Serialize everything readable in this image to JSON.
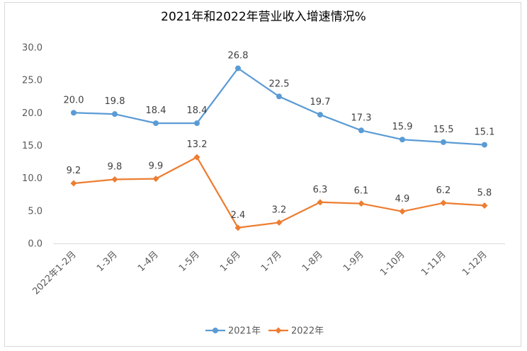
{
  "chart_data": {
    "type": "line",
    "title": "2021年和2022年营业收入增速情况%",
    "xlabel": "",
    "ylabel": "",
    "categories": [
      "2022年1-2月",
      "1-3月",
      "1-4月",
      "1-5月",
      "1-6月",
      "1-7月",
      "1-8月",
      "1-9月",
      "1-10月",
      "1-11月",
      "1-12月"
    ],
    "ylim": [
      0,
      30
    ],
    "yticks": [
      "0.0",
      "5.0",
      "10.0",
      "15.0",
      "20.0",
      "25.0",
      "30.0"
    ],
    "grid": false,
    "legend_position": "bottom",
    "series": [
      {
        "name": "2021年",
        "color": "#5b9bd5",
        "marker": "circle",
        "values": [
          20.0,
          19.8,
          18.4,
          18.4,
          26.8,
          22.5,
          19.7,
          17.3,
          15.9,
          15.5,
          15.1
        ],
        "labels": [
          "20.0",
          "19.8",
          "18.4",
          "18.4",
          "26.8",
          "22.5",
          "19.7",
          "17.3",
          "15.9",
          "15.5",
          "15.1"
        ]
      },
      {
        "name": "2022年",
        "color": "#ed7d31",
        "marker": "diamond",
        "values": [
          9.2,
          9.8,
          9.9,
          13.2,
          2.4,
          3.2,
          6.3,
          6.1,
          4.9,
          6.2,
          5.8
        ],
        "labels": [
          "9.2",
          "9.8",
          "9.9",
          "13.2",
          "2.4",
          "3.2",
          "6.3",
          "6.1",
          "4.9",
          "6.2",
          "5.8"
        ]
      }
    ]
  }
}
